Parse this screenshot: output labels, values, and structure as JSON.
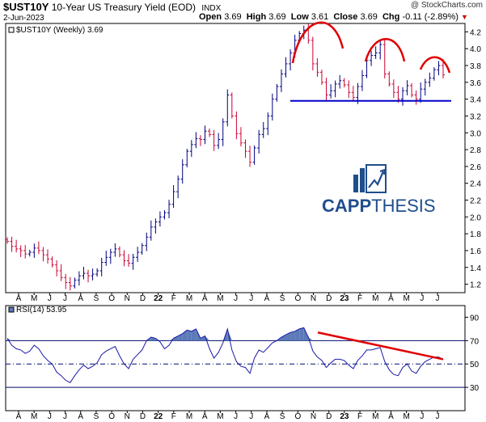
{
  "header": {
    "symbol": "$UST10Y",
    "name": "10-Year US Treasury Yield (EOD)",
    "exchange": "INDX",
    "watermark": "@ StockCharts.com",
    "date": "2-Jun-2023",
    "open_label": "Open",
    "open": "3.69",
    "high_label": "High",
    "high": "3.69",
    "low_label": "Low",
    "low": "3.61",
    "close_label": "Close",
    "close": "3.69",
    "chg_label": "Chg",
    "chg": "-0.11 (-2.89%)",
    "chg_icon": "down-triangle-icon"
  },
  "logo": {
    "brand": "CAPPTHESIS",
    "brand_a": "CAPP",
    "brand_b": "THESIS",
    "icon": "chart-trend-arrow-icon"
  },
  "chart_data": [
    {
      "type": "ohlc",
      "legend": "$UST10Y (Weekly) 3.69",
      "ylim": [
        1.1,
        4.3
      ],
      "yticks": [
        "1.2",
        "1.4",
        "1.6",
        "1.8",
        "2.0",
        "2.2",
        "2.4",
        "2.6",
        "2.8",
        "3.0",
        "3.2",
        "3.4",
        "3.6",
        "3.8",
        "4.0",
        "4.2"
      ],
      "x_tick_labels": [
        "A",
        "M",
        "J",
        "J",
        "A",
        "S",
        "O",
        "N",
        "D",
        "22",
        "F",
        "M",
        "A",
        "M",
        "J",
        "J",
        "A",
        "S",
        "O",
        "N",
        "D",
        "23",
        "F",
        "M",
        "A",
        "M",
        "J",
        "J"
      ],
      "series_close": [
        1.71,
        1.65,
        1.62,
        1.6,
        1.56,
        1.58,
        1.63,
        1.6,
        1.55,
        1.5,
        1.43,
        1.36,
        1.28,
        1.22,
        1.18,
        1.25,
        1.3,
        1.33,
        1.3,
        1.32,
        1.36,
        1.46,
        1.52,
        1.58,
        1.62,
        1.55,
        1.48,
        1.45,
        1.52,
        1.58,
        1.66,
        1.76,
        1.88,
        1.94,
        2.0,
        2.05,
        2.15,
        2.3,
        2.45,
        2.62,
        2.78,
        2.86,
        2.93,
        2.92,
        3.02,
        2.98,
        2.85,
        2.92,
        3.13,
        3.45,
        3.2,
        2.99,
        2.88,
        2.78,
        2.65,
        2.82,
        2.98,
        3.05,
        3.2,
        3.4,
        3.55,
        3.7,
        3.82,
        3.95,
        4.1,
        4.18,
        4.22,
        4.1,
        3.82,
        3.72,
        3.6,
        3.45,
        3.5,
        3.58,
        3.62,
        3.57,
        3.48,
        3.42,
        3.55,
        3.68,
        3.86,
        3.92,
        3.95,
        4.05,
        3.7,
        3.58,
        3.48,
        3.4,
        3.5,
        3.56,
        3.45,
        3.4,
        3.52,
        3.6,
        3.65,
        3.75,
        3.8,
        3.69
      ],
      "drawn_annotations": {
        "support_level": 3.38,
        "line_color": "#0000cc",
        "arc_color": "#e00000",
        "shape": "head-and-shoulders"
      },
      "up_color": "#000080",
      "down_color": "#cc0033"
    },
    {
      "type": "line",
      "legend": "RSI(14) 53.95",
      "ylim": [
        10,
        100
      ],
      "yticks": [
        "30",
        "50",
        "70",
        "90"
      ],
      "reference_lines": [
        30,
        50,
        70
      ],
      "x_tick_labels": [
        "A",
        "M",
        "J",
        "J",
        "A",
        "S",
        "O",
        "N",
        "D",
        "22",
        "F",
        "M",
        "A",
        "M",
        "J",
        "J",
        "A",
        "S",
        "O",
        "N",
        "D",
        "23",
        "F",
        "M",
        "A",
        "M",
        "J",
        "J"
      ],
      "values": [
        72,
        66,
        63,
        62,
        59,
        61,
        66,
        63,
        57,
        53,
        50,
        43,
        40,
        36,
        34,
        40,
        45,
        49,
        46,
        48,
        51,
        58,
        61,
        63,
        65,
        57,
        50,
        46,
        54,
        58,
        62,
        70,
        73,
        72,
        69,
        63,
        66,
        72,
        74,
        76,
        79,
        78,
        80,
        72,
        74,
        63,
        55,
        60,
        68,
        80,
        62,
        52,
        48,
        47,
        42,
        55,
        62,
        60,
        64,
        68,
        70,
        73,
        75,
        77,
        78,
        80,
        81,
        73,
        61,
        56,
        53,
        47,
        51,
        54,
        54,
        53,
        49,
        46,
        53,
        57,
        62,
        62,
        63,
        64,
        52,
        45,
        41,
        40,
        47,
        50,
        44,
        42,
        48,
        52,
        54,
        56,
        56,
        53.95
      ],
      "trendline_color": "#e00000",
      "line_color": "#1a1aa6",
      "fill_color": "#5c7ab8"
    }
  ]
}
